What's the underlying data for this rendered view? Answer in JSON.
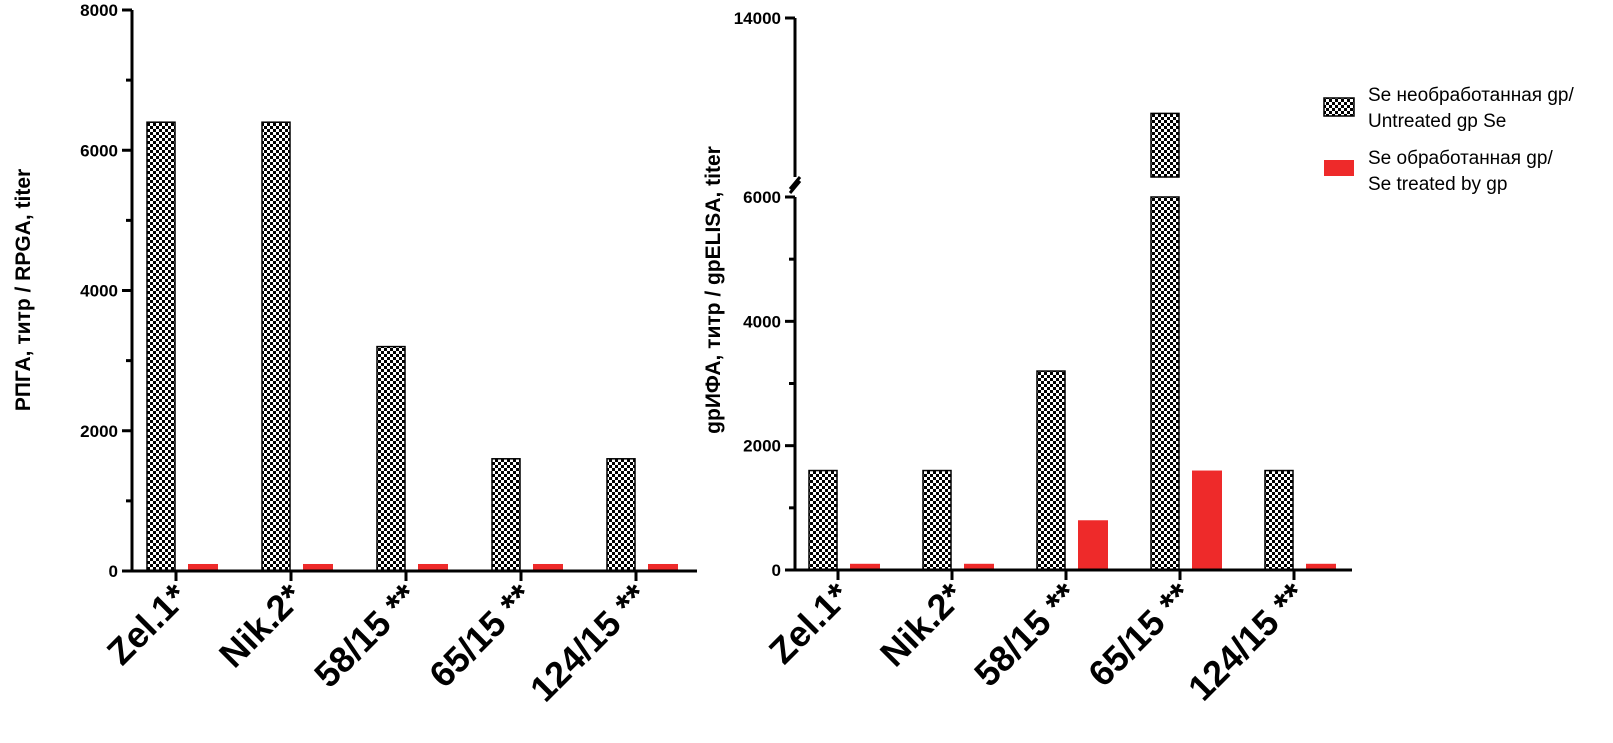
{
  "chart_data": [
    {
      "type": "bar",
      "ylabel": "РПГА, титр / RPGA, titer",
      "categories": [
        "Zel.1*",
        "Nik.2*",
        "58/15 **",
        "65/15 **",
        "124/15 **"
      ],
      "ylim": [
        0,
        8000
      ],
      "yticks": [
        0,
        2000,
        4000,
        6000,
        8000
      ],
      "series": [
        {
          "name": "Se необработанная gp/ Untreated gp Se",
          "pattern": "checkerboard",
          "values": [
            6400,
            6400,
            3200,
            1600,
            1600
          ]
        },
        {
          "name": "Se обработанная gp/ Se treated by gp",
          "color": "#ee2a2a",
          "values": [
            100,
            100,
            100,
            100,
            100
          ]
        }
      ],
      "grid": false
    },
    {
      "type": "bar",
      "ylabel": "gpИФА, титр / gpELISA, titer",
      "categories": [
        "Zel.1*",
        "Nik.2*",
        "58/15 **",
        "65/15 **",
        "124/15 **"
      ],
      "ylim": [
        0,
        14000
      ],
      "axis_break": [
        6000,
        12000
      ],
      "yticks": [
        0,
        2000,
        4000,
        6000,
        14000
      ],
      "series": [
        {
          "name": "Se необработанная gp/ Untreated gp Se",
          "pattern": "checkerboard",
          "values": [
            1600,
            1600,
            3200,
            12800,
            1600
          ]
        },
        {
          "name": "Se обработанная gp/ Se treated by gp",
          "color": "#ee2a2a",
          "values": [
            100,
            100,
            800,
            1600,
            100
          ]
        }
      ],
      "grid": false
    }
  ],
  "legend": {
    "placement": "right",
    "items": [
      {
        "line1": "Se необработанная gp/",
        "line2": "Untreated gp Se",
        "swatch": "checkerboard"
      },
      {
        "line1": "Se обработанная gp/",
        "line2": "Se treated by gp",
        "swatch": "#ee2a2a"
      }
    ]
  }
}
